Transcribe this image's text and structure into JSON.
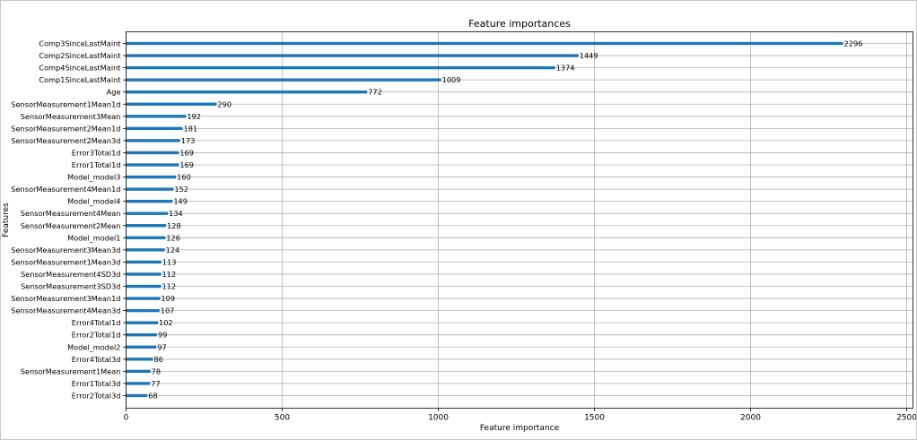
{
  "chart_data": {
    "type": "bar",
    "orientation": "horizontal",
    "title": "Feature importances",
    "xlabel": "Feature importance",
    "ylabel": "Features",
    "xlim": [
      0,
      2520
    ],
    "xticks": [
      0,
      500,
      1000,
      1500,
      2000,
      2500
    ],
    "grid": true,
    "bar_color": "#1f77b4",
    "categories": [
      "Comp3SinceLastMaint",
      "Comp2SinceLastMaint",
      "Comp4SinceLastMaint",
      "Comp1SinceLastMaint",
      "Age",
      "SensorMeasurement1Mean1d",
      "SensorMeasurement3Mean",
      "SensorMeasurement2Mean1d",
      "SensorMeasurement2Mean3d",
      "Error3Total1d",
      "Error1Total1d",
      "Model_model3",
      "SensorMeasurement4Mean1d",
      "Model_model4",
      "SensorMeasurement4Mean",
      "SensorMeasurement2Mean",
      "Model_model1",
      "SensorMeasurement3Mean3d",
      "SensorMeasurement1Mean3d",
      "SensorMeasurement4SD3d",
      "SensorMeasurement3SD3d",
      "SensorMeasurement3Mean1d",
      "SensorMeasurement4Mean3d",
      "Error4Total1d",
      "Error2Total1d",
      "Model_model2",
      "Error4Total3d",
      "SensorMeasurement1Mean",
      "Error1Total3d",
      "Error2Total3d"
    ],
    "values": [
      2296,
      1449,
      1374,
      1009,
      772,
      290,
      192,
      181,
      173,
      169,
      169,
      160,
      152,
      149,
      134,
      128,
      126,
      124,
      113,
      112,
      112,
      109,
      107,
      102,
      99,
      97,
      86,
      78,
      77,
      68
    ]
  }
}
